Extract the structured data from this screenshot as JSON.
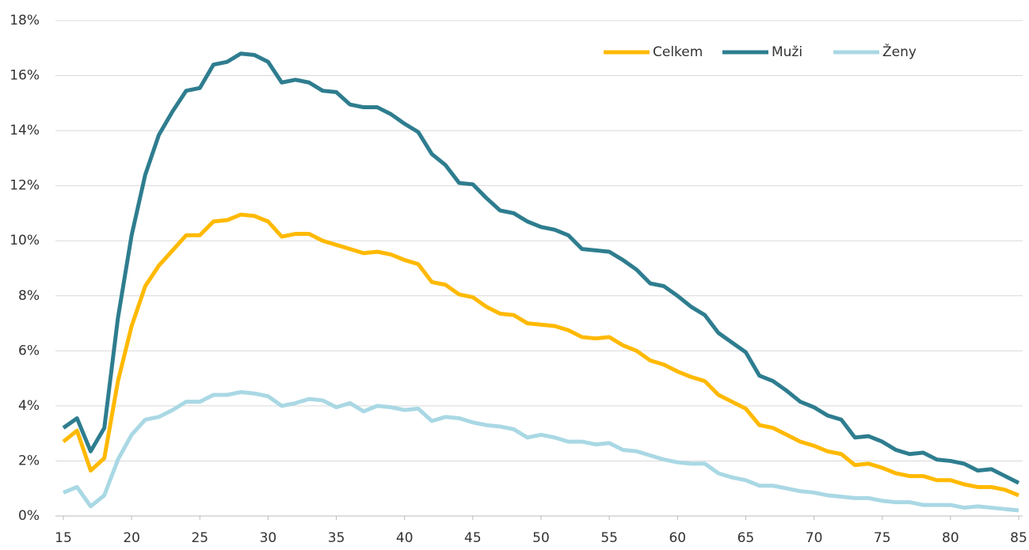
{
  "chart_data": {
    "type": "line",
    "x": [
      15,
      16,
      17,
      18,
      19,
      20,
      21,
      22,
      23,
      24,
      25,
      26,
      27,
      28,
      29,
      30,
      31,
      32,
      33,
      34,
      35,
      36,
      37,
      38,
      39,
      40,
      41,
      42,
      43,
      44,
      45,
      46,
      47,
      48,
      49,
      50,
      51,
      52,
      53,
      54,
      55,
      56,
      57,
      58,
      59,
      60,
      61,
      62,
      63,
      64,
      65,
      66,
      67,
      68,
      69,
      70,
      71,
      72,
      73,
      74,
      75,
      76,
      77,
      78,
      79,
      80,
      81,
      82,
      83,
      84,
      85
    ],
    "series": [
      {
        "name": "Celkem",
        "color": "#ffb900",
        "values": [
          2.7,
          3.1,
          1.65,
          2.1,
          4.9,
          6.9,
          8.35,
          9.1,
          9.65,
          10.2,
          10.2,
          10.7,
          10.75,
          10.95,
          10.9,
          10.7,
          10.15,
          10.25,
          10.25,
          10.0,
          9.85,
          9.7,
          9.55,
          9.6,
          9.5,
          9.3,
          9.15,
          8.5,
          8.4,
          8.05,
          7.95,
          7.6,
          7.35,
          7.3,
          7.0,
          6.95,
          6.9,
          6.75,
          6.5,
          6.45,
          6.5,
          6.2,
          6.0,
          5.65,
          5.5,
          5.25,
          5.05,
          4.9,
          4.4,
          4.15,
          3.9,
          3.3,
          3.2,
          2.95,
          2.7,
          2.55,
          2.35,
          2.25,
          1.85,
          1.9,
          1.75,
          1.55,
          1.45,
          1.45,
          1.3,
          1.3,
          1.15,
          1.05,
          1.05,
          0.95,
          0.75
        ]
      },
      {
        "name": "Muži",
        "color": "#2e7d8f",
        "values": [
          3.2,
          3.55,
          2.35,
          3.2,
          7.2,
          10.2,
          12.4,
          13.85,
          14.7,
          15.45,
          15.55,
          16.4,
          16.5,
          16.8,
          16.75,
          16.5,
          15.75,
          15.85,
          15.75,
          15.45,
          15.4,
          14.95,
          14.85,
          14.85,
          14.6,
          14.25,
          13.95,
          13.15,
          12.75,
          12.1,
          12.05,
          11.55,
          11.1,
          11.0,
          10.7,
          10.5,
          10.4,
          10.2,
          9.7,
          9.65,
          9.6,
          9.3,
          8.95,
          8.45,
          8.35,
          8.0,
          7.6,
          7.3,
          6.65,
          6.3,
          5.95,
          5.1,
          4.9,
          4.55,
          4.15,
          3.95,
          3.65,
          3.5,
          2.85,
          2.9,
          2.7,
          2.4,
          2.25,
          2.3,
          2.05,
          2.0,
          1.9,
          1.65,
          1.7,
          1.45,
          1.2
        ]
      },
      {
        "name": "Ženy",
        "color": "#a9d8e4",
        "values": [
          0.85,
          1.05,
          0.35,
          0.75,
          2.05,
          2.95,
          3.5,
          3.6,
          3.85,
          4.15,
          4.15,
          4.4,
          4.4,
          4.5,
          4.45,
          4.35,
          4.0,
          4.1,
          4.25,
          4.2,
          3.95,
          4.1,
          3.8,
          4.0,
          3.95,
          3.85,
          3.9,
          3.45,
          3.6,
          3.55,
          3.4,
          3.3,
          3.25,
          3.15,
          2.85,
          2.95,
          2.85,
          2.7,
          2.7,
          2.6,
          2.65,
          2.4,
          2.35,
          2.2,
          2.05,
          1.95,
          1.9,
          1.9,
          1.55,
          1.4,
          1.3,
          1.1,
          1.1,
          1.0,
          0.9,
          0.85,
          0.75,
          0.7,
          0.65,
          0.65,
          0.55,
          0.5,
          0.5,
          0.4,
          0.4,
          0.4,
          0.3,
          0.35,
          0.3,
          0.25,
          0.2
        ]
      }
    ],
    "xlim": [
      15,
      85
    ],
    "xticks": [
      15,
      20,
      25,
      30,
      35,
      40,
      45,
      50,
      55,
      60,
      65,
      70,
      75,
      80,
      85
    ],
    "ylim": [
      0,
      18
    ],
    "yticks": [
      {
        "value": 0,
        "label": "0%"
      },
      {
        "value": 2,
        "label": "2%"
      },
      {
        "value": 4,
        "label": "4%"
      },
      {
        "value": 6,
        "label": "6%"
      },
      {
        "value": 8,
        "label": "8%"
      },
      {
        "value": 10,
        "label": "10%"
      },
      {
        "value": 12,
        "label": "12%"
      },
      {
        "value": 14,
        "label": "14%"
      },
      {
        "value": 16,
        "label": "16%"
      },
      {
        "value": 18,
        "label": "18%"
      }
    ],
    "grid": true,
    "legend": "upper right"
  }
}
